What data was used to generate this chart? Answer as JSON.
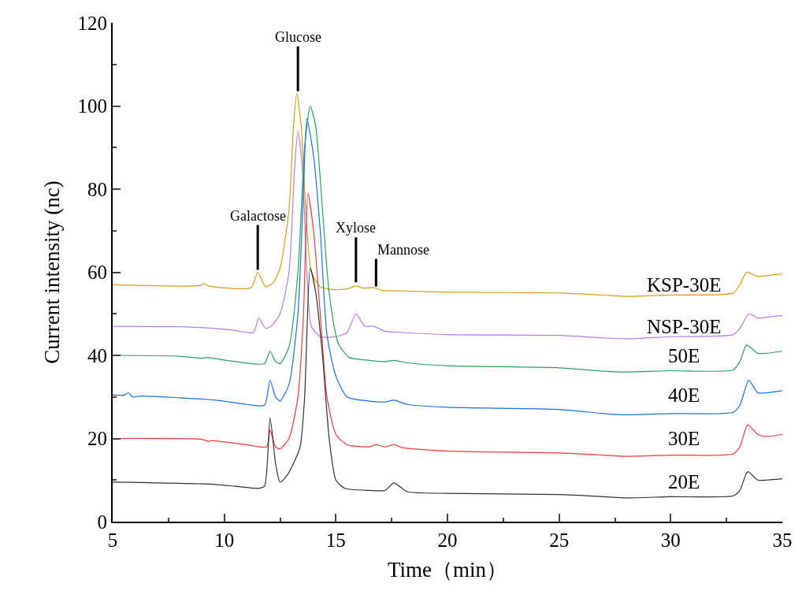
{
  "chart_data": {
    "type": "line",
    "xlabel": "Time（min）",
    "ylabel": "Current intensity (nc)",
    "xlim": [
      5,
      35
    ],
    "xticks": [
      5,
      10,
      15,
      20,
      25,
      30,
      35
    ],
    "ylim": [
      0,
      120
    ],
    "yticks": [
      0,
      20,
      40,
      60,
      80,
      100,
      120
    ],
    "marker": "none",
    "line_style": "solid",
    "annotations": [
      {
        "text": "Galactose",
        "x": 11.5,
        "y": 60
      },
      {
        "text": "Glucose",
        "x": 13.3,
        "y": 103
      },
      {
        "text": "Xylose",
        "x": 15.9,
        "y": 57
      },
      {
        "text": "Mannose",
        "x": 16.8,
        "y": 56
      }
    ],
    "series": [
      {
        "name": "KSP-30E",
        "color": "#d4a017",
        "x": [
          5,
          8.9,
          9.1,
          9.3,
          11.2,
          11.5,
          11.85,
          12.2,
          12.5,
          12.9,
          13.1,
          13.25,
          13.45,
          13.65,
          13.9,
          14.3,
          15,
          15.5,
          15.9,
          16.2,
          16.7,
          17.1,
          18,
          20,
          25,
          27,
          28,
          30,
          32.8,
          33.1,
          33.4,
          33.9,
          34.5,
          35
        ],
        "values": [
          57,
          56.8,
          57.3,
          56.7,
          56.3,
          60,
          56.5,
          57.5,
          61,
          75,
          95,
          103,
          95,
          75,
          60,
          56.5,
          55.8,
          56,
          56.7,
          56.2,
          56.3,
          55.6,
          55.5,
          55.2,
          55,
          54.5,
          54.2,
          54.5,
          55,
          57,
          60,
          59,
          59.3,
          59.6
        ]
      },
      {
        "name": "NSP-30E",
        "color": "#b57ee6",
        "x": [
          5,
          8,
          9.5,
          10.5,
          11.3,
          11.55,
          11.85,
          12.1,
          12.5,
          12.9,
          13.15,
          13.3,
          13.5,
          13.7,
          13.9,
          14.3,
          15,
          15.5,
          15.9,
          16.3,
          16.7,
          17.2,
          18,
          20,
          25,
          27,
          28,
          30,
          32.8,
          33.1,
          33.5,
          33.9,
          34.5,
          35
        ],
        "values": [
          47,
          46.9,
          46.5,
          46,
          45.5,
          49,
          46.5,
          47,
          50,
          60,
          85,
          94,
          85,
          60,
          47,
          44.5,
          44.5,
          45.5,
          50,
          47,
          47,
          45.8,
          45.5,
          45,
          44.8,
          44.2,
          44,
          44.5,
          45,
          46.5,
          50,
          49,
          49.3,
          49.6
        ]
      },
      {
        "name": "50E",
        "color": "#2ca05a",
        "x": [
          5,
          8,
          9,
          9.2,
          10.5,
          11.8,
          12.05,
          12.3,
          12.5,
          12.9,
          13.3,
          13.6,
          13.85,
          14.1,
          14.4,
          14.7,
          15.1,
          15.6,
          16.5,
          17.2,
          17.6,
          18.2,
          20,
          25,
          27,
          28,
          30,
          32.8,
          33.1,
          33.4,
          33.9,
          34.3,
          35
        ],
        "values": [
          40,
          39.8,
          39.3,
          39.5,
          38.5,
          38,
          41,
          38.5,
          38,
          42,
          60,
          90,
          100,
          95,
          75,
          55,
          43,
          39.5,
          38.8,
          38.5,
          38.8,
          38.2,
          37.5,
          37,
          36.2,
          36,
          36.3,
          36.5,
          38.5,
          42.5,
          40.5,
          40.5,
          41
        ]
      },
      {
        "name": "40E",
        "color": "#1f6fe0",
        "x": [
          5,
          5.5,
          5.7,
          5.9,
          6.2,
          8,
          9,
          10,
          11,
          11.8,
          12.05,
          12.3,
          12.5,
          12.9,
          13.3,
          13.55,
          13.7,
          14,
          14.3,
          14.6,
          15,
          15.5,
          16.5,
          17.2,
          17.6,
          18.2,
          20,
          25,
          27,
          28,
          30,
          32.8,
          33.1,
          33.5,
          33.9,
          34.3,
          35
        ],
        "values": [
          30.5,
          30.4,
          31,
          30,
          30.2,
          29.8,
          29.5,
          29,
          28.2,
          28,
          34,
          30,
          29,
          33,
          50,
          80,
          97,
          88,
          70,
          45,
          35,
          30,
          29,
          28.8,
          29.2,
          28.2,
          27.5,
          27,
          26,
          25.7,
          26,
          26.3,
          28,
          34,
          31,
          31,
          31.5
        ]
      },
      {
        "name": "30E",
        "color": "#f03c3c",
        "x": [
          5,
          9,
          9.3,
          9.4,
          11,
          11.9,
          12.05,
          12.3,
          12.5,
          12.9,
          13.3,
          13.55,
          13.75,
          14,
          14.3,
          14.6,
          15,
          15.5,
          16.5,
          16.8,
          17.2,
          17.6,
          18,
          20,
          25,
          27,
          28,
          30,
          32.8,
          33.1,
          33.45,
          33.9,
          34.3,
          35
        ],
        "values": [
          20,
          19.8,
          19.3,
          19.5,
          18.5,
          18,
          22,
          18,
          17.5,
          20,
          30,
          50,
          79,
          70,
          50,
          30,
          21,
          18.5,
          18,
          18.5,
          18,
          18.5,
          17.8,
          17,
          16.5,
          16,
          15.7,
          16,
          16.3,
          18,
          23.3,
          21,
          20.5,
          21
        ]
      },
      {
        "name": "20E",
        "color": "#333333",
        "x": [
          5,
          9.5,
          10.5,
          11.5,
          11.8,
          12.05,
          12.3,
          12.5,
          12.8,
          13.1,
          13.4,
          13.6,
          13.85,
          14.1,
          14.4,
          14.7,
          15,
          15.4,
          16.5,
          17.2,
          17.6,
          18.2,
          20,
          25,
          27,
          28,
          30,
          32.8,
          33.1,
          33.45,
          33.9,
          34.3,
          35
        ],
        "values": [
          9.5,
          9,
          8.5,
          8,
          8.5,
          25,
          14,
          9.5,
          11,
          14,
          18,
          30,
          61,
          55,
          40,
          20,
          10,
          8,
          7.5,
          7.5,
          9.3,
          7.2,
          6.8,
          6.5,
          6,
          5.7,
          6,
          6.2,
          7.5,
          12,
          10,
          10,
          10.3
        ]
      }
    ]
  }
}
